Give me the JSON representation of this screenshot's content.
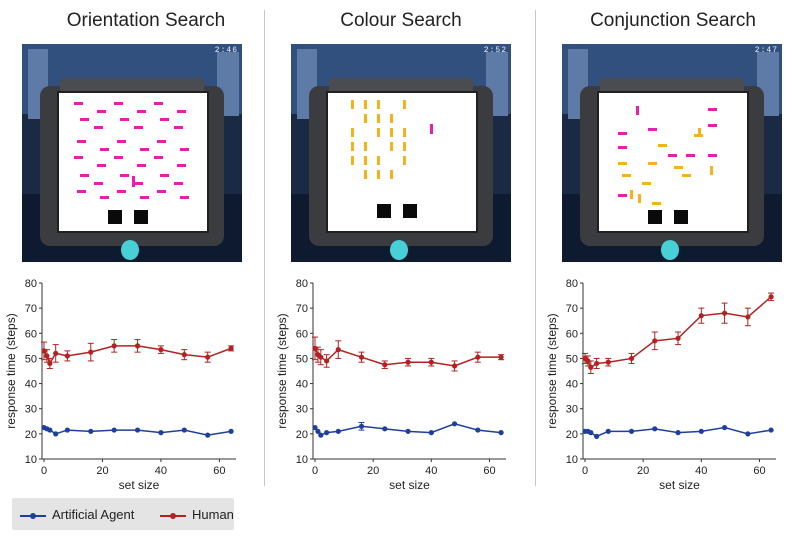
{
  "colors": {
    "agent": "#1f3f9c",
    "human": "#b22222",
    "pink": "#e61fb0",
    "orange": "#f4b21c"
  },
  "legend": {
    "agent_label": "Artificial Agent",
    "human_label": "Human"
  },
  "panels": [
    {
      "title": "Orientation Search",
      "timer": "2:46"
    },
    {
      "title": "Colour Search",
      "timer": "2:52"
    },
    {
      "title": "Conjunction Search",
      "timer": "2:47"
    }
  ],
  "chart_data": [
    {
      "type": "line",
      "title": "Orientation Search",
      "xlabel": "set size",
      "ylabel": "response time (steps)",
      "xlim": [
        0,
        65
      ],
      "ylim": [
        10,
        80
      ],
      "xticks": [
        0,
        20,
        40,
        60
      ],
      "yticks": [
        10,
        20,
        30,
        40,
        50,
        60,
        70,
        80
      ],
      "series": [
        {
          "name": "Artificial Agent",
          "x": [
            0,
            1,
            2,
            4,
            8,
            16,
            24,
            32,
            40,
            48,
            56,
            64
          ],
          "y": [
            22.5,
            22,
            21.5,
            20,
            21.5,
            21,
            21.5,
            21.5,
            20.5,
            21.5,
            19.5,
            21
          ],
          "err": [
            0.6,
            0.6,
            0.6,
            0.6,
            0.6,
            0.6,
            0.6,
            0.6,
            0.6,
            0.6,
            0.6,
            0.6
          ]
        },
        {
          "name": "Human",
          "x": [
            0,
            1,
            2,
            4,
            8,
            16,
            24,
            32,
            40,
            48,
            56,
            64
          ],
          "y": [
            53,
            51,
            48,
            52,
            51,
            52.5,
            55,
            55,
            53.5,
            51.5,
            50.5,
            54
          ],
          "err": [
            3.5,
            2.5,
            2,
            3.5,
            2,
            3.5,
            2.5,
            2.5,
            1.5,
            2,
            2,
            1
          ]
        }
      ]
    },
    {
      "type": "line",
      "title": "Colour Search",
      "xlabel": "set size",
      "ylabel": "response time (steps)",
      "xlim": [
        0,
        65
      ],
      "ylim": [
        10,
        80
      ],
      "xticks": [
        0,
        20,
        40,
        60
      ],
      "yticks": [
        10,
        20,
        30,
        40,
        50,
        60,
        70,
        80
      ],
      "series": [
        {
          "name": "Artificial Agent",
          "x": [
            0,
            1,
            2,
            4,
            8,
            16,
            24,
            32,
            40,
            48,
            56,
            64
          ],
          "y": [
            22.5,
            21,
            19.5,
            20.5,
            21,
            23,
            22,
            21,
            20.5,
            24,
            21.5,
            20.5
          ],
          "err": [
            0.6,
            0.6,
            0.6,
            0.6,
            0.6,
            1.5,
            0.6,
            0.6,
            0.6,
            0.8,
            0.6,
            0.6
          ]
        },
        {
          "name": "Human",
          "x": [
            0,
            1,
            2,
            4,
            8,
            16,
            24,
            32,
            40,
            48,
            56,
            64
          ],
          "y": [
            54,
            51.5,
            50.5,
            49,
            53.5,
            50.5,
            47.5,
            48.5,
            48.5,
            47,
            50.5,
            50.5
          ],
          "err": [
            4.5,
            3,
            3,
            2.5,
            3.5,
            2,
            1.5,
            1.5,
            1.5,
            2,
            2,
            1
          ]
        }
      ]
    },
    {
      "type": "line",
      "title": "Conjunction Search",
      "xlabel": "set size",
      "ylabel": "response time (steps)",
      "xlim": [
        0,
        65
      ],
      "ylim": [
        10,
        80
      ],
      "xticks": [
        0,
        20,
        40,
        60
      ],
      "yticks": [
        10,
        20,
        30,
        40,
        50,
        60,
        70,
        80
      ],
      "series": [
        {
          "name": "Artificial Agent",
          "x": [
            0,
            1,
            2,
            4,
            8,
            16,
            24,
            32,
            40,
            48,
            56,
            64
          ],
          "y": [
            21,
            21,
            20.5,
            19,
            21,
            21,
            22,
            20.5,
            21,
            22.5,
            20,
            21.5
          ],
          "err": [
            0.6,
            0.6,
            0.6,
            0.6,
            0.6,
            0.6,
            0.6,
            0.6,
            0.6,
            0.6,
            0.6,
            0.6
          ]
        },
        {
          "name": "Human",
          "x": [
            0,
            1,
            2,
            4,
            8,
            16,
            24,
            32,
            40,
            48,
            56,
            64
          ],
          "y": [
            50,
            49,
            46.5,
            48,
            48.5,
            50,
            57,
            58,
            67,
            68,
            66.5,
            74.5
          ],
          "err": [
            2,
            2,
            2.5,
            2,
            1.5,
            2,
            3.5,
            2.5,
            3,
            4,
            3.5,
            1.5
          ]
        }
      ]
    }
  ]
}
